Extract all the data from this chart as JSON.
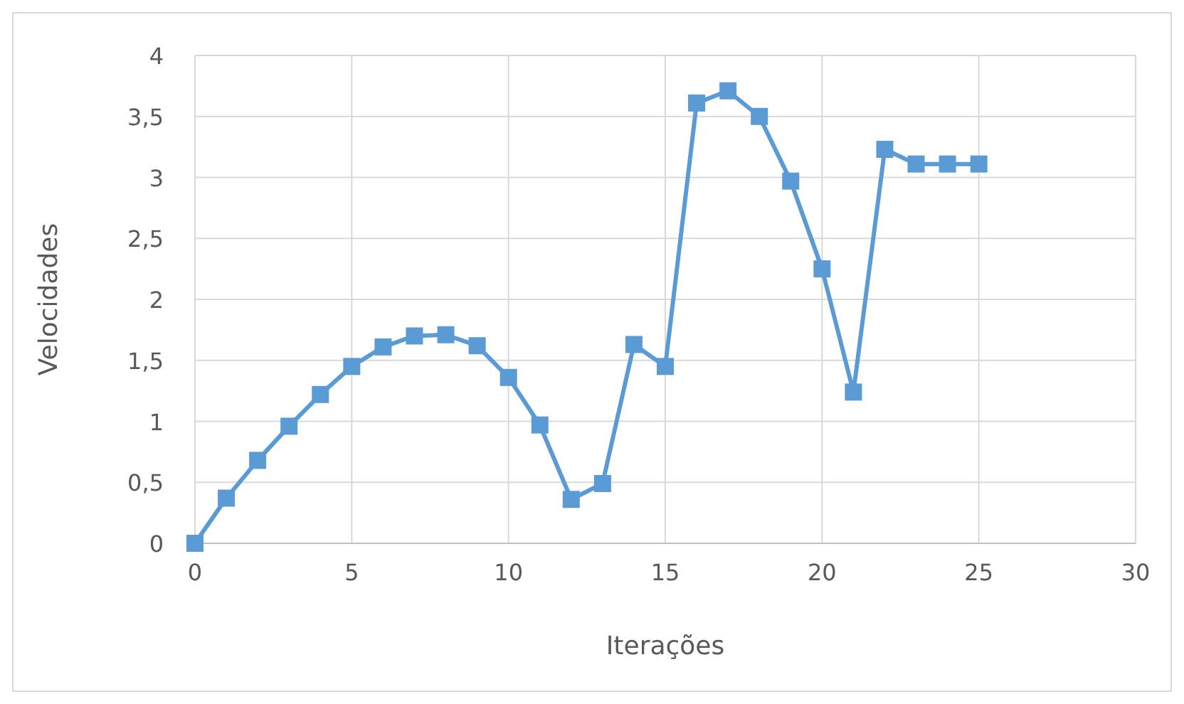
{
  "chart_data": {
    "type": "line",
    "xlabel": "Iterações",
    "ylabel": "Velocidades",
    "x": [
      0,
      1,
      2,
      3,
      4,
      5,
      6,
      7,
      8,
      9,
      10,
      11,
      12,
      13,
      14,
      15,
      16,
      17,
      18,
      19,
      20,
      21,
      22,
      23,
      24,
      25
    ],
    "series": [
      {
        "color": "#5b9bd5",
        "values": [
          0,
          0.37,
          0.68,
          0.96,
          1.22,
          1.45,
          1.61,
          1.7,
          1.71,
          1.62,
          1.36,
          0.97,
          0.36,
          0.49,
          1.63,
          1.45,
          3.61,
          3.71,
          3.5,
          2.97,
          2.25,
          1.24,
          3.23,
          3.11,
          3.11,
          3.11
        ]
      }
    ],
    "xlim": [
      0,
      30
    ],
    "xticks": [
      0,
      5,
      10,
      15,
      20,
      25,
      30
    ],
    "ylim": [
      0,
      4
    ],
    "yticks": [
      0,
      {
        "value": 0.5,
        "label": "0,5"
      },
      1,
      {
        "value": 1.5,
        "label": "1,5"
      },
      2,
      {
        "value": 2.5,
        "label": "2,5"
      },
      3,
      {
        "value": 3.5,
        "label": "3,5"
      },
      4
    ],
    "grid": true,
    "marker": "square",
    "line_style": "solid"
  }
}
